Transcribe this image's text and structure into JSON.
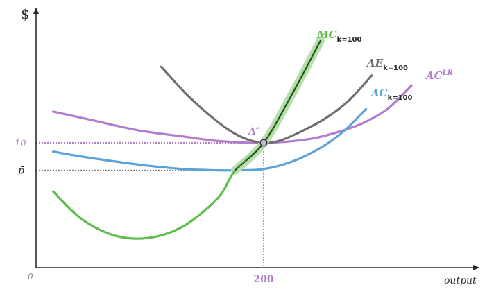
{
  "chart_data": {
    "type": "line",
    "title": "",
    "xlabel": "output",
    "ylabel": "$",
    "origin_label": "0",
    "xlim": [
      0,
      400
    ],
    "ylim": [
      0,
      20
    ],
    "x_ticks": [
      {
        "value": 200,
        "label": "200"
      }
    ],
    "y_ticks": [
      {
        "value": 10,
        "label": "10"
      },
      {
        "value": 7.8,
        "label": "p̄"
      }
    ],
    "point": {
      "label": "A″",
      "x": 200,
      "y": 10
    },
    "colors": {
      "mc": "#5bbf4a",
      "mc_band": "#b9ddb0",
      "ae": "#6f6f6f",
      "ac": "#5aa2d8",
      "aclr": "#b27dcb",
      "axis": "#2a2a2a",
      "guide_gray": "#7a7a7a",
      "guide_purple": "#b27dcb"
    },
    "series": [
      {
        "key": "mc",
        "name": "MC",
        "subscript": "k=100",
        "superscript": "",
        "x": [
          15,
          40,
          70,
          100,
          130,
          160,
          175,
          200,
          225,
          250
        ],
        "y": [
          6.1,
          3.9,
          2.55,
          2.4,
          3.35,
          5.6,
          7.8,
          10,
          13.9,
          18.2
        ]
      },
      {
        "key": "ae",
        "name": "AE",
        "subscript": "k=100",
        "superscript": "",
        "x": [
          110,
          130,
          150,
          170,
          185,
          200,
          215,
          235,
          255,
          275,
          295
        ],
        "y": [
          16.1,
          14.1,
          12.4,
          11.0,
          10.3,
          10.0,
          10.2,
          11.0,
          12.0,
          13.4,
          15.4
        ]
      },
      {
        "key": "ac",
        "name": "AC",
        "subscript": "k=100",
        "superscript": "",
        "x": [
          15,
          40,
          70,
          100,
          130,
          160,
          175,
          200,
          225,
          250,
          270,
          290
        ],
        "y": [
          9.3,
          8.9,
          8.5,
          8.15,
          7.9,
          7.8,
          7.8,
          7.9,
          8.5,
          9.6,
          10.9,
          12.7
        ]
      },
      {
        "key": "aclr",
        "name": "AC",
        "subscript": "",
        "superscript": "LR",
        "x": [
          15,
          50,
          90,
          130,
          160,
          200,
          240,
          270,
          290,
          310,
          330
        ],
        "y": [
          12.5,
          11.8,
          11.0,
          10.5,
          10.15,
          10.0,
          10.3,
          11.0,
          11.7,
          12.8,
          14.6
        ]
      }
    ]
  }
}
